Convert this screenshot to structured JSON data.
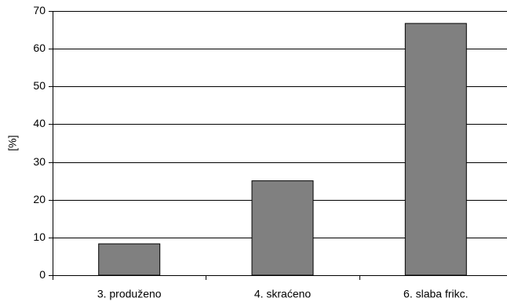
{
  "chart_data": {
    "type": "bar",
    "categories": [
      "3. produženo",
      "4. skraćeno",
      "6. slaba frikc."
    ],
    "values": [
      8.3,
      25,
      66.7
    ],
    "ylabel": "[%]",
    "xlabel": "",
    "ylim": [
      0,
      70
    ],
    "yticks": [
      0,
      10,
      20,
      30,
      40,
      50,
      60,
      70
    ],
    "grid": true,
    "colors": {
      "bar_fill": "#808080",
      "bar_stroke": "#000000",
      "grid": "#000000",
      "axis": "#000000",
      "text": "#000000"
    }
  }
}
